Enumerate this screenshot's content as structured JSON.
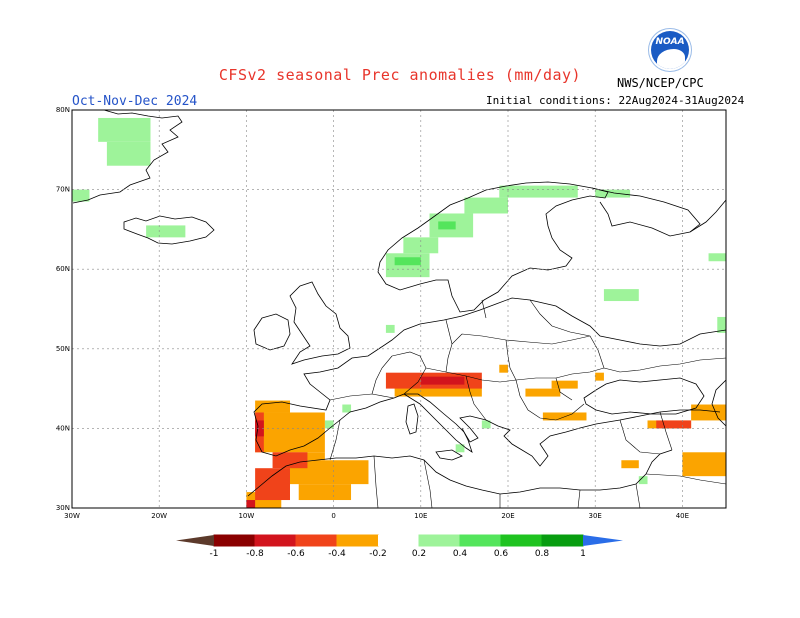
{
  "header": {
    "title": "CFSv2 seasonal Prec anomalies (mm/day)",
    "period": "Oct-Nov-Dec 2024",
    "initial_conditions": "Initial conditions: 22Aug2024-31Aug2024",
    "agency": "NWS/NCEP/CPC",
    "logo_text": "NOAA"
  },
  "map": {
    "lon_range": [
      -30,
      45
    ],
    "lat_range": [
      30,
      80
    ],
    "lat_ticks": [
      {
        "v": 80,
        "label": "80N"
      },
      {
        "v": 70,
        "label": "70N"
      },
      {
        "v": 60,
        "label": "60N"
      },
      {
        "v": 50,
        "label": "50N"
      },
      {
        "v": 40,
        "label": "40N"
      },
      {
        "v": 30,
        "label": "30N"
      }
    ],
    "lon_ticks": [
      {
        "v": -30,
        "label": "30W"
      },
      {
        "v": -20,
        "label": "20W"
      },
      {
        "v": -10,
        "label": "10W"
      },
      {
        "v": 0,
        "label": "0"
      },
      {
        "v": 10,
        "label": "10E"
      },
      {
        "v": 20,
        "label": "20E"
      },
      {
        "v": 30,
        "label": "30E"
      },
      {
        "v": 40,
        "label": "40E"
      }
    ],
    "anomaly_patches": [
      {
        "level": 0.3,
        "lon": [
          -27,
          -21
        ],
        "lat": [
          76,
          79
        ]
      },
      {
        "level": 0.3,
        "lon": [
          -26,
          -21
        ],
        "lat": [
          73,
          76
        ]
      },
      {
        "level": 0.3,
        "lon": [
          -30,
          -28
        ],
        "lat": [
          68.5,
          70
        ]
      },
      {
        "level": 0.3,
        "lon": [
          -21.5,
          -17
        ],
        "lat": [
          64,
          65.5
        ]
      },
      {
        "level": 0.3,
        "lon": [
          6,
          11
        ],
        "lat": [
          59,
          62
        ]
      },
      {
        "level": 0.3,
        "lon": [
          8,
          12
        ],
        "lat": [
          62,
          64
        ]
      },
      {
        "level": 0.3,
        "lon": [
          11,
          16
        ],
        "lat": [
          64,
          67
        ]
      },
      {
        "level": 0.3,
        "lon": [
          15,
          20
        ],
        "lat": [
          67,
          69
        ]
      },
      {
        "level": 0.3,
        "lon": [
          19,
          28
        ],
        "lat": [
          69,
          70.5
        ]
      },
      {
        "level": 0.5,
        "lon": [
          7,
          10
        ],
        "lat": [
          60.5,
          61.5
        ]
      },
      {
        "level": 0.5,
        "lon": [
          12,
          14
        ],
        "lat": [
          65,
          66
        ]
      },
      {
        "level": 0.3,
        "lon": [
          30,
          34
        ],
        "lat": [
          69,
          70
        ]
      },
      {
        "level": 0.3,
        "lon": [
          31,
          35
        ],
        "lat": [
          56,
          57.5
        ]
      },
      {
        "level": 0.3,
        "lon": [
          43,
          45
        ],
        "lat": [
          61,
          62
        ]
      },
      {
        "level": 0.3,
        "lon": [
          44,
          45
        ],
        "lat": [
          52,
          54
        ]
      },
      {
        "level": 0.3,
        "lon": [
          6,
          7
        ],
        "lat": [
          52,
          53
        ]
      },
      {
        "level": 0.3,
        "lon": [
          1,
          2
        ],
        "lat": [
          42,
          43
        ]
      },
      {
        "level": 0.3,
        "lon": [
          -1,
          0
        ],
        "lat": [
          40,
          41
        ]
      },
      {
        "level": 0.3,
        "lon": [
          14,
          15
        ],
        "lat": [
          37,
          38
        ]
      },
      {
        "level": 0.3,
        "lon": [
          17,
          18
        ],
        "lat": [
          40,
          41
        ]
      },
      {
        "level": 0.3,
        "lon": [
          35,
          36
        ],
        "lat": [
          33,
          34
        ]
      },
      {
        "level": -0.3,
        "lon": [
          -9,
          -1
        ],
        "lat": [
          37,
          42
        ]
      },
      {
        "level": -0.3,
        "lon": [
          -9,
          -5
        ],
        "lat": [
          42,
          43.5
        ]
      },
      {
        "level": -0.3,
        "lon": [
          -6,
          -1
        ],
        "lat": [
          36,
          37
        ]
      },
      {
        "level": -0.3,
        "lon": [
          -6,
          4
        ],
        "lat": [
          33,
          36
        ]
      },
      {
        "level": -0.3,
        "lon": [
          -4,
          2
        ],
        "lat": [
          31,
          33
        ]
      },
      {
        "level": -0.3,
        "lon": [
          -10,
          -6
        ],
        "lat": [
          30,
          32
        ]
      },
      {
        "level": -0.3,
        "lon": [
          7,
          17
        ],
        "lat": [
          44,
          46
        ]
      },
      {
        "level": -0.3,
        "lon": [
          22,
          26
        ],
        "lat": [
          44,
          45
        ]
      },
      {
        "level": -0.3,
        "lon": [
          25,
          28
        ],
        "lat": [
          45,
          46
        ]
      },
      {
        "level": -0.3,
        "lon": [
          19,
          20
        ],
        "lat": [
          47,
          48
        ]
      },
      {
        "level": -0.3,
        "lon": [
          30,
          31
        ],
        "lat": [
          46,
          47
        ]
      },
      {
        "level": -0.3,
        "lon": [
          24,
          29
        ],
        "lat": [
          41,
          42
        ]
      },
      {
        "level": -0.3,
        "lon": [
          36,
          41
        ],
        "lat": [
          40,
          41
        ]
      },
      {
        "level": -0.3,
        "lon": [
          41,
          45
        ],
        "lat": [
          41,
          43
        ]
      },
      {
        "level": -0.3,
        "lon": [
          40,
          45
        ],
        "lat": [
          34,
          37
        ]
      },
      {
        "level": -0.3,
        "lon": [
          33,
          35
        ],
        "lat": [
          35,
          36
        ]
      },
      {
        "level": -0.5,
        "lon": [
          -9,
          -8
        ],
        "lat": [
          37,
          42
        ]
      },
      {
        "level": -0.5,
        "lon": [
          -7,
          -3
        ],
        "lat": [
          35,
          37
        ]
      },
      {
        "level": -0.5,
        "lon": [
          -9,
          -5
        ],
        "lat": [
          31,
          35
        ]
      },
      {
        "level": -0.5,
        "lon": [
          6,
          17
        ],
        "lat": [
          45,
          47
        ]
      },
      {
        "level": -0.5,
        "lon": [
          37,
          41
        ],
        "lat": [
          40,
          41
        ]
      },
      {
        "level": -0.7,
        "lon": [
          -9,
          -8
        ],
        "lat": [
          39,
          41
        ]
      },
      {
        "level": -0.7,
        "lon": [
          -10,
          -9
        ],
        "lat": [
          30,
          31
        ]
      },
      {
        "level": -0.7,
        "lon": [
          10,
          15
        ],
        "lat": [
          45.5,
          46.5
        ]
      }
    ]
  },
  "colorbar": {
    "labels": [
      "-1",
      "-0.8",
      "-0.6",
      "-0.4",
      "-0.2",
      "0.2",
      "0.4",
      "0.6",
      "0.8",
      "1"
    ],
    "colors": [
      "#8a0000",
      "#d2141d",
      "#f0431a",
      "#fba400",
      "#ffffff",
      "#9ef39a",
      "#54e55c",
      "#1fc320",
      "#079d10"
    ],
    "below_color": "#5c3a2b",
    "above_color": "#2a6de8",
    "anomaly_levels": {
      "-0.7": "#d2141d",
      "-0.5": "#f0431a",
      "-0.3": "#fba400",
      "0.3": "#9ef39a",
      "0.5": "#54e55c",
      "0.7": "#1fc320"
    }
  }
}
